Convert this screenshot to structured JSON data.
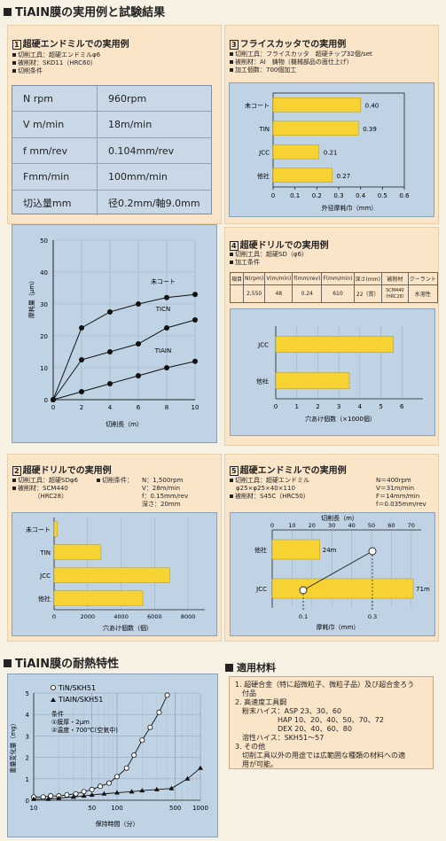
{
  "page_title": "TiAIN膜の実用例と試験結果",
  "p1": {
    "num": "1",
    "title": "超硬エンドミルでの実用例",
    "specs": [
      "切削工具：超硬エンドミルφ6",
      "被削材：SKD11（HRC60）",
      "切削条件"
    ],
    "rows": [
      {
        "k": "N  rpm",
        "v": "960rpm"
      },
      {
        "k": "V  m/min",
        "v": "18m/min"
      },
      {
        "k": "f  mm/rev",
        "v": "0.104mm/rev"
      },
      {
        "k": "Fmm/min",
        "v": "100mm/min"
      },
      {
        "k": "切込量mm",
        "v": "径0.2mm/軸9.0mm"
      }
    ]
  },
  "p3": {
    "num": "3",
    "title": "フライスカッタでの実用例",
    "specs": [
      "切削工具：フライスカッタ　超硬チップ32個/set",
      "被削材：AI　鋳物（機械部品の面仕上げ）",
      "加工個数：700個加工"
    ]
  },
  "p4": {
    "num": "4",
    "title": "超硬ドリルでの実用例",
    "specs": [
      "切削工具：超硬SD（φ6）",
      "加工条件"
    ],
    "table": {
      "headers": [
        "項目",
        "N(rpm)",
        "V(m/min)",
        "f(mm/rev)",
        "F(mm/min)",
        "深さ(mm)",
        "被削材",
        "クーラント"
      ],
      "values": [
        "",
        "2,550",
        "48",
        "0.24",
        "610",
        "22（貫）",
        "SCM440（HRC28）",
        "水溶性"
      ]
    }
  },
  "p2": {
    "num": "2",
    "title": "超硬ドリルでの実用例",
    "specs_left": [
      "切削工具：超硬SDφ6",
      "被削材：SCM440",
      "　　　　（HRC28）"
    ],
    "specs_right_label": "切削条件：",
    "specs_right": [
      "N：1,500rpm",
      "V：28m/min",
      "f：0.15mm/rev",
      "深さ：20mm"
    ]
  },
  "p5": {
    "num": "5",
    "title": "超硬エンドミルでの実用例",
    "specs_left": [
      "切削工具：超硬エンドミル",
      "　φ25×φ25×40×110",
      "被削材：S45C（HRC50）"
    ],
    "specs_right": [
      "N＝400rpm",
      "V＝31m/min",
      "F＝14mm/min",
      "f＝0.035mm/rev"
    ]
  },
  "heat_title": "TiAIN膜の耐熱特性",
  "materials": {
    "title": "適用材料",
    "lines": [
      "1. 超硬合金（特に超微粒子、微粒子品）及び超合金ろう",
      "　付品",
      "2. 高速度工具鋼",
      "　粉末ハイス：ASP 23、30、60",
      "　　　　　　HAP 10、20、40、50、70、72",
      "　　　　　　DEX 20、40、60、80",
      "　溶性ハイス：SKH51〜57",
      "3. その他",
      "　切削工具以外の用途では広範囲な種類の材料への適",
      "　用が可能。"
    ]
  },
  "chart_data": [
    {
      "type": "line",
      "xlabel": "切削長（m）",
      "ylabel": "摩耗量（μm）",
      "xlim": [
        0,
        10
      ],
      "ylim": [
        0,
        50
      ],
      "x_ticks": [
        "0",
        "2",
        "4",
        "6",
        "8",
        "10"
      ],
      "y_ticks": [
        "0",
        "10",
        "20",
        "30",
        "40",
        "50"
      ],
      "series": [
        {
          "name": "未コート",
          "x": [
            0,
            2,
            4,
            6,
            8,
            10
          ],
          "y": [
            0,
            22.5,
            27.5,
            30,
            32,
            33
          ]
        },
        {
          "name": "TICN",
          "x": [
            0,
            2,
            4,
            6,
            8,
            10
          ],
          "y": [
            0,
            12.5,
            15,
            17.5,
            22.5,
            25
          ]
        },
        {
          "name": "TIAIN",
          "x": [
            0,
            2,
            4,
            6,
            8,
            10
          ],
          "y": [
            0,
            2.5,
            5,
            7.5,
            10,
            12
          ]
        }
      ]
    },
    {
      "type": "bar",
      "orientation": "horizontal",
      "categories": [
        "未コート",
        "TIN",
        "JCC",
        "他社"
      ],
      "values": [
        0.4,
        0.39,
        0.21,
        0.27
      ],
      "value_labels": [
        "0.40",
        "0.39",
        "0.21",
        "0.27"
      ],
      "xlabel": "外径摩耗巾（mm）",
      "xlim": [
        0,
        0.6
      ],
      "x_ticks": [
        "0",
        "0.1",
        "0.2",
        "0.3",
        "0.4",
        "0.5",
        "0.6"
      ]
    },
    {
      "type": "bar",
      "orientation": "horizontal",
      "categories": [
        "JCC",
        "他社"
      ],
      "values": [
        5.6,
        3.5
      ],
      "xlabel": "穴あけ個数（×1000個）",
      "xlim": [
        0,
        7
      ],
      "x_ticks": [
        "0",
        "1",
        "2",
        "3",
        "4",
        "5",
        "6"
      ]
    },
    {
      "type": "bar",
      "orientation": "horizontal",
      "categories": [
        "未コート",
        "TIN",
        "JCC",
        "他社"
      ],
      "values": [
        200,
        2800,
        6900,
        5300
      ],
      "xlabel": "穴あけ個数（個）",
      "xlim": [
        0,
        9000
      ],
      "x_ticks": [
        "0",
        "2000",
        "4000",
        "6000",
        "8000"
      ]
    },
    {
      "type": "bar",
      "orientation": "horizontal",
      "categories": [
        "他社",
        "JCC"
      ],
      "values": [
        24,
        71
      ],
      "value_labels": [
        "24m",
        "71m"
      ],
      "top_axis_label": "切削長（m）",
      "top_ticks": [
        "0",
        "10",
        "20",
        "30",
        "40",
        "50",
        "60",
        "70"
      ],
      "xlim": [
        0,
        75
      ],
      "wear": {
        "label": "摩耗巾（mm）",
        "ticks": [
          "0.1",
          "0.3"
        ],
        "JCC": 0.1,
        "他社": 0.3
      }
    },
    {
      "type": "line",
      "xscale": "log",
      "xlabel": "保持時間（分）",
      "ylabel": "重量変化量（mg）",
      "xlim": [
        10,
        1000
      ],
      "ylim": [
        0,
        5
      ],
      "x_ticks": [
        "10",
        "50",
        "100",
        "500",
        "1000"
      ],
      "y_ticks": [
        "0",
        "1",
        "2",
        "3",
        "4",
        "5"
      ],
      "conditions": [
        "条件",
        "①膜厚・2μm",
        "②温度・700℃(空気中)"
      ],
      "series": [
        {
          "name": "TiN/SKH51",
          "marker": "open-circle",
          "x": [
            10,
            13,
            16,
            20,
            25,
            32,
            40,
            50,
            63,
            80,
            100,
            130,
            160,
            200,
            250,
            320,
            400
          ],
          "y": [
            0.15,
            0.15,
            0.2,
            0.2,
            0.25,
            0.3,
            0.4,
            0.5,
            0.65,
            0.8,
            1.1,
            1.5,
            2.1,
            2.8,
            3.4,
            4.1,
            4.9
          ]
        },
        {
          "name": "TIAIN/SKH51",
          "marker": "filled-triangle",
          "x": [
            10,
            15,
            20,
            30,
            40,
            50,
            70,
            100,
            150,
            200,
            300,
            450,
            700,
            1000
          ],
          "y": [
            0.05,
            0.05,
            0.1,
            0.15,
            0.2,
            0.25,
            0.3,
            0.35,
            0.4,
            0.45,
            0.5,
            0.55,
            1.0,
            1.5
          ]
        }
      ]
    }
  ]
}
